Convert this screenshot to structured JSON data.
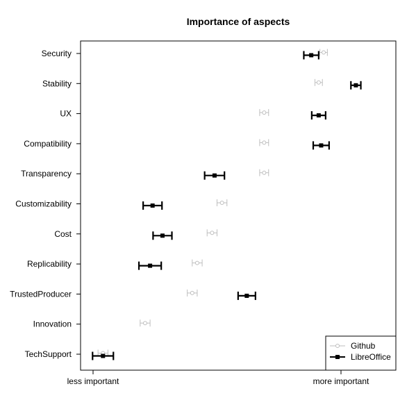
{
  "chart_data": {
    "type": "dot-errorbar",
    "title": "Importance of aspects",
    "categories": [
      "Security",
      "Stability",
      "UX",
      "Compatibility",
      "Transparency",
      "Customizability",
      "Cost",
      "Replicability",
      "TrustedProducer",
      "Innovation",
      "TechSupport"
    ],
    "xlim": [
      0,
      1.2
    ],
    "x_ticks": [
      {
        "value": 0,
        "label": "less important"
      },
      {
        "value": 1,
        "label": "more important"
      }
    ],
    "legend": {
      "position": "bottom-right",
      "entries": [
        "Github",
        "LibreOffice"
      ]
    },
    "series": [
      {
        "name": "Github",
        "color": "#bebebe",
        "marker": "open-circle",
        "values": [
          0.93,
          0.91,
          0.69,
          0.69,
          0.69,
          0.52,
          0.48,
          0.42,
          0.4,
          0.21,
          0.04
        ],
        "err": [
          0.015,
          0.015,
          0.018,
          0.018,
          0.018,
          0.02,
          0.02,
          0.02,
          0.02,
          0.02,
          0.02
        ]
      },
      {
        "name": "LibreOffice",
        "color": "#000000",
        "marker": "filled-square",
        "values": [
          0.88,
          1.06,
          0.91,
          0.92,
          0.49,
          0.24,
          0.28,
          0.23,
          0.62,
          null,
          0.04
        ],
        "err": [
          0.03,
          0.02,
          0.028,
          0.032,
          0.04,
          0.038,
          0.038,
          0.045,
          0.035,
          null,
          0.042
        ]
      }
    ]
  }
}
